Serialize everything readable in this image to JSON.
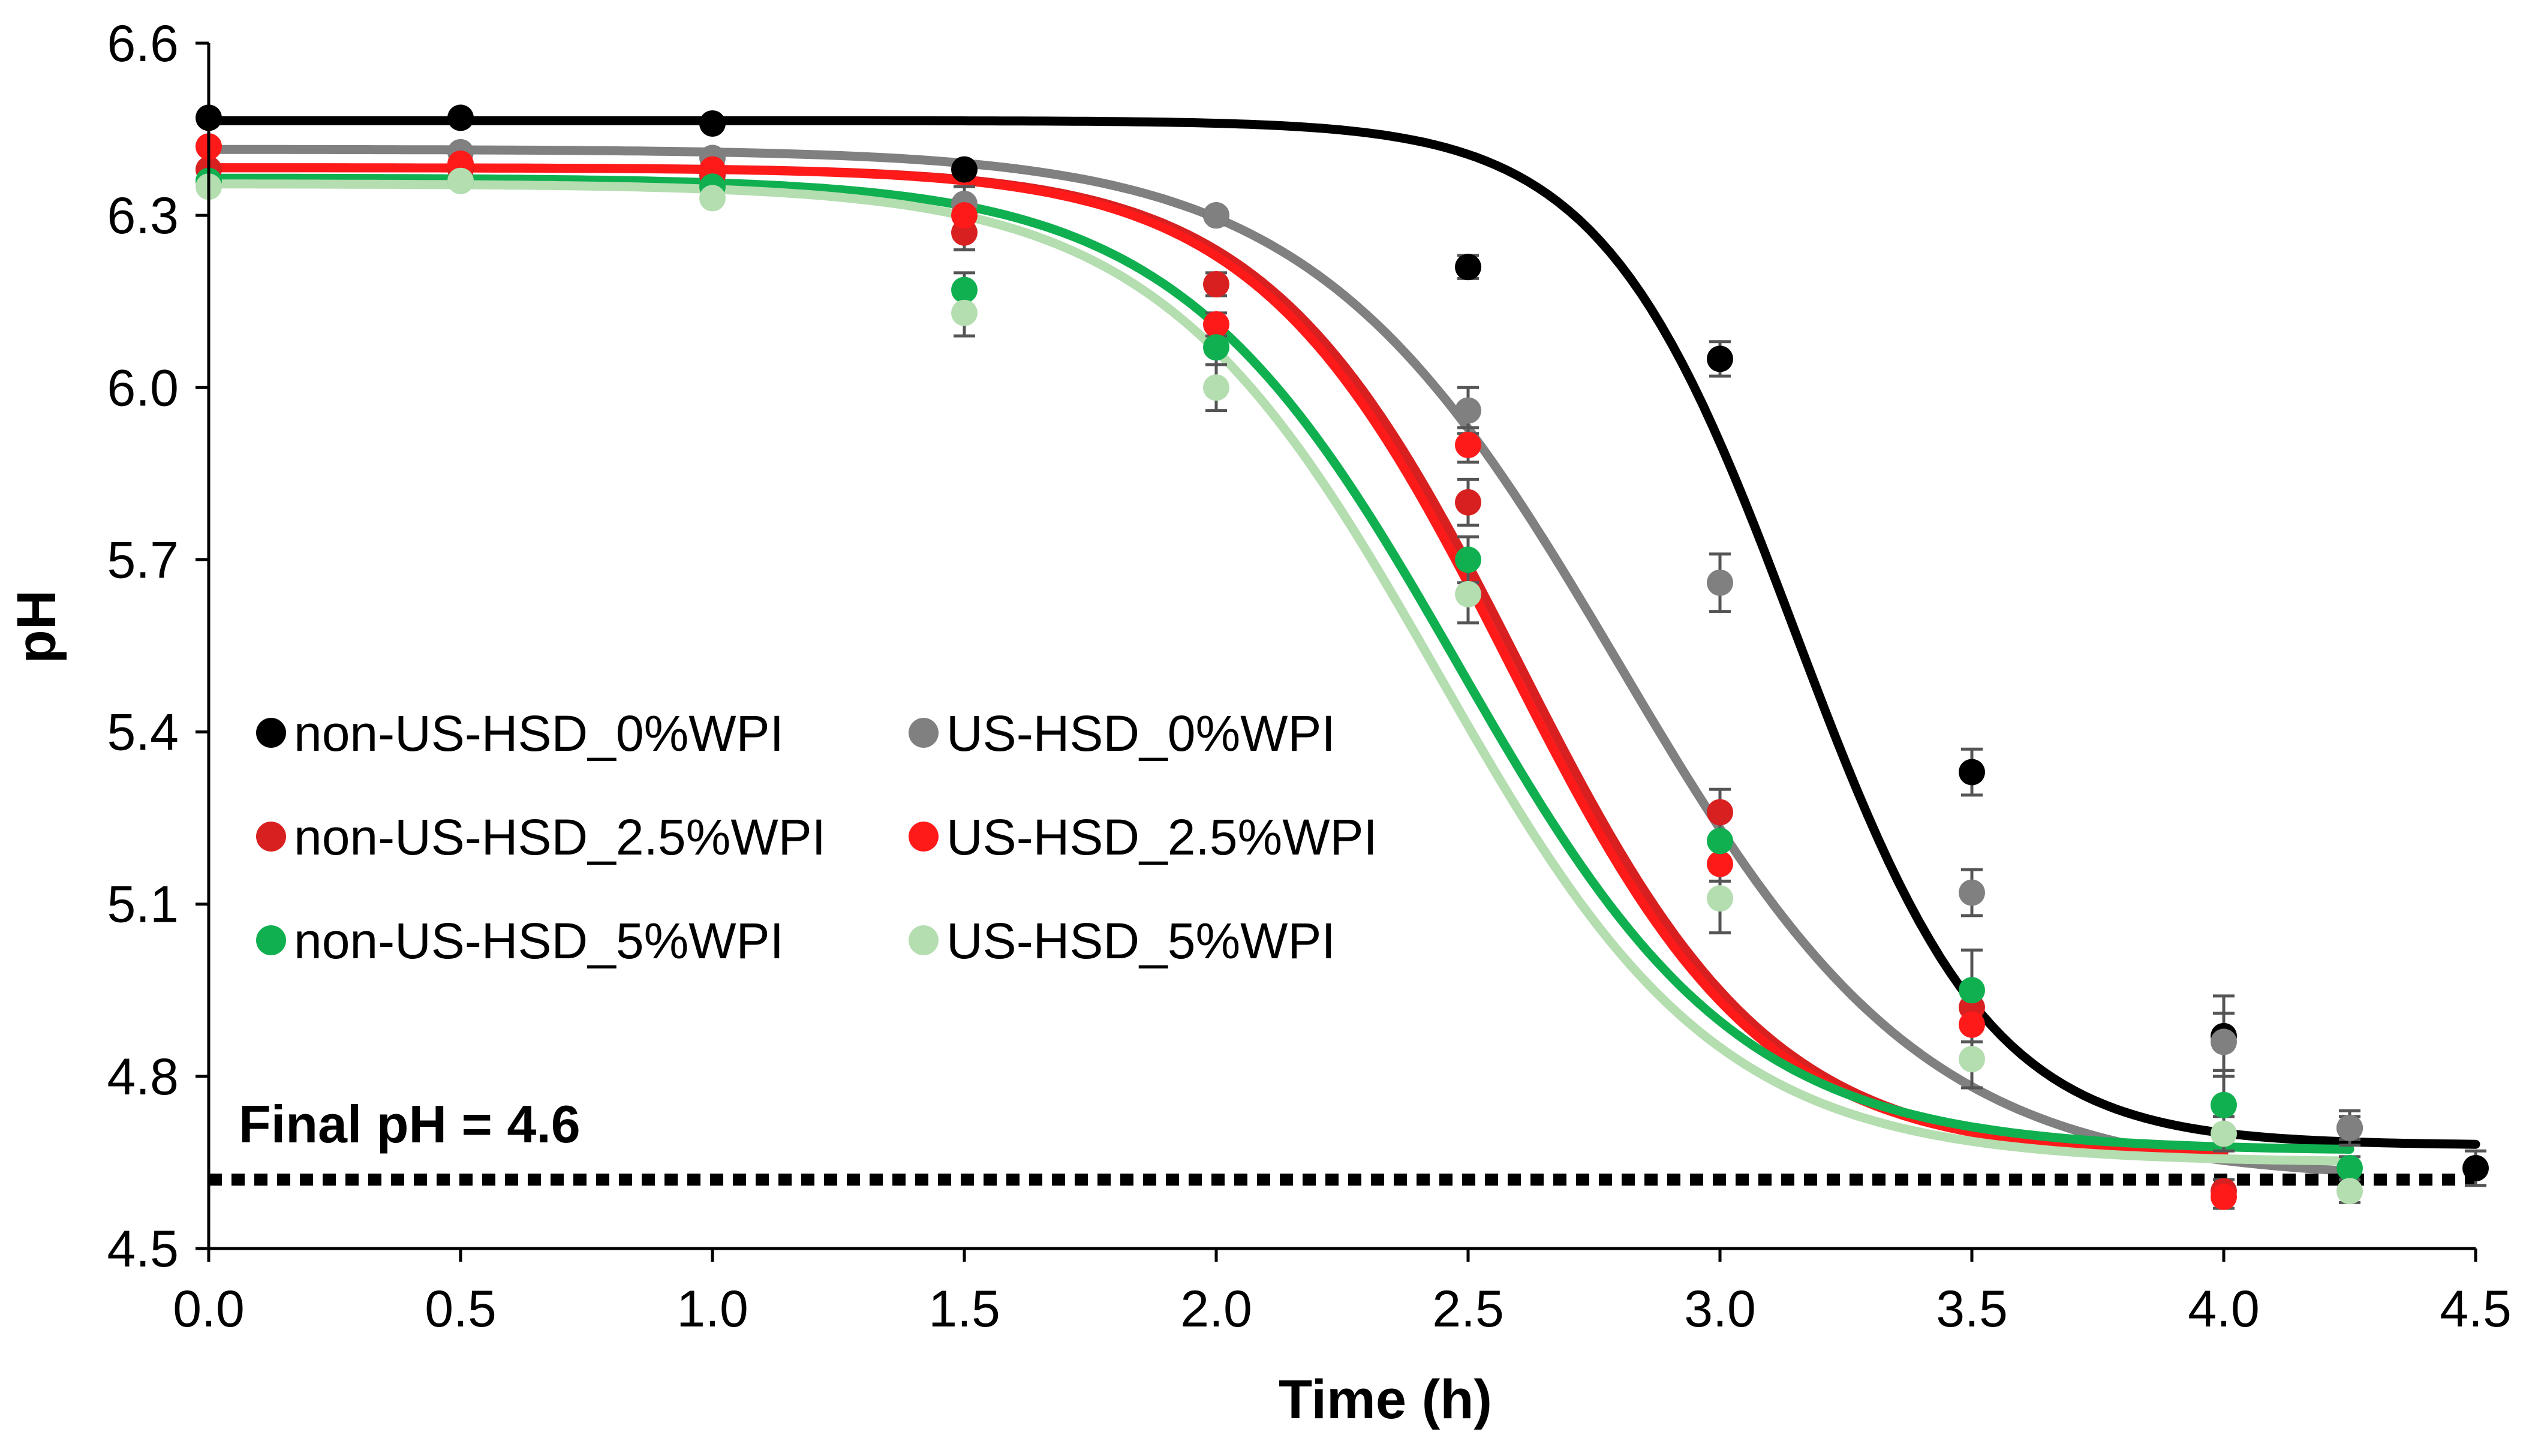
{
  "chart_data": {
    "type": "scatter",
    "xlabel": "Time (h)",
    "ylabel": "pH",
    "xlim": [
      0,
      4.5
    ],
    "ylim": [
      4.5,
      6.6
    ],
    "x_ticks": [
      "0.0",
      "0.5",
      "1.0",
      "1.5",
      "2.0",
      "2.5",
      "3.0",
      "3.5",
      "4.0",
      "4.5"
    ],
    "y_ticks": [
      "4.5",
      "4.8",
      "5.1",
      "5.4",
      "5.7",
      "6.0",
      "6.3",
      "6.6"
    ],
    "grid": false,
    "legend_position": "center-left",
    "annotation": {
      "text": "Final pH = 4.6",
      "y": 4.62
    },
    "series": [
      {
        "name": "non-US-HSD_0%WPI",
        "color": "#000000",
        "x": [
          0,
          0.5,
          1.0,
          1.5,
          2.0,
          2.5,
          3.0,
          3.5,
          4.0,
          4.25,
          4.5
        ],
        "y": [
          6.47,
          6.47,
          6.46,
          6.38,
          6.3,
          6.21,
          6.05,
          5.33,
          4.87,
          4.71,
          4.64
        ],
        "error": [
          0,
          0,
          0,
          0,
          0,
          0.02,
          0.03,
          0.04,
          0.07,
          0.02,
          0.03
        ],
        "fit": {
          "top": 6.465,
          "bottom": 4.68,
          "mid": 3.15,
          "slope": 5.2,
          "x_start": 0,
          "x_end": 4.5
        }
      },
      {
        "name": "US-HSD_0%WPI",
        "color": "#808080",
        "x": [
          0,
          0.5,
          1.0,
          1.5,
          2.0,
          2.5,
          3.0,
          3.5,
          4.0,
          4.25
        ],
        "y": [
          6.42,
          6.41,
          6.4,
          6.32,
          6.3,
          5.96,
          5.66,
          5.12,
          4.86,
          4.71
        ],
        "error": [
          0,
          0,
          0,
          0.03,
          0,
          0.04,
          0.05,
          0.04,
          0.05,
          0.03
        ],
        "fit": {
          "top": 6.415,
          "bottom": 4.62,
          "mid": 2.8,
          "slope": 3.3,
          "x_start": 0,
          "x_end": 4.25
        }
      },
      {
        "name": "non-US-HSD_2.5%WPI",
        "color": "#D92020",
        "x": [
          0,
          0.5,
          1.0,
          1.5,
          2.0,
          2.5,
          3.0,
          3.5,
          4.0
        ],
        "y": [
          6.38,
          6.38,
          6.37,
          6.27,
          6.18,
          5.8,
          5.26,
          4.92,
          4.6
        ],
        "error": [
          0,
          0,
          0,
          0.03,
          0.02,
          0.04,
          0.04,
          0.03,
          0.02
        ],
        "fit": {
          "top": 6.383,
          "bottom": 4.66,
          "mid": 2.6,
          "slope": 4.0,
          "x_start": 0,
          "x_end": 4.0
        }
      },
      {
        "name": "US-HSD_2.5%WPI",
        "color": "#FF1A1A",
        "x": [
          0,
          0.5,
          1.0,
          1.5,
          2.0,
          2.5,
          3.0,
          3.5,
          4.0
        ],
        "y": [
          6.42,
          6.39,
          6.38,
          6.3,
          6.11,
          5.9,
          5.17,
          4.89,
          4.59
        ],
        "error": [
          0,
          0,
          0,
          0.02,
          0.02,
          0.03,
          0.03,
          0.03,
          0.02
        ],
        "fit": {
          "top": 6.383,
          "bottom": 4.66,
          "mid": 2.58,
          "slope": 4.0,
          "x_start": 0,
          "x_end": 4.0
        }
      },
      {
        "name": "non-US-HSD_5%WPI",
        "color": "#10B050",
        "x": [
          0,
          0.5,
          1.0,
          1.5,
          2.0,
          2.5,
          3.0,
          3.5,
          4.0,
          4.25
        ],
        "y": [
          6.36,
          6.36,
          6.35,
          6.17,
          6.07,
          5.7,
          5.21,
          4.95,
          4.75,
          4.64
        ],
        "error": [
          0,
          0,
          0,
          0.03,
          0.03,
          0.04,
          0.04,
          0.07,
          0.06,
          0.02
        ],
        "fit": {
          "top": 6.365,
          "bottom": 4.67,
          "mid": 2.48,
          "slope": 3.6,
          "x_start": 0,
          "x_end": 4.25
        }
      },
      {
        "name": "US-HSD_5%WPI",
        "color": "#B4DDB0",
        "x": [
          0,
          0.5,
          1.0,
          1.5,
          2.0,
          2.5,
          3.0,
          3.5,
          4.0,
          4.25
        ],
        "y": [
          6.35,
          6.36,
          6.33,
          6.13,
          6.0,
          5.64,
          5.11,
          4.83,
          4.7,
          4.6
        ],
        "error": [
          0,
          0,
          0,
          0.04,
          0.04,
          0.05,
          0.06,
          0.05,
          0.03,
          0.02
        ],
        "fit": {
          "top": 6.355,
          "bottom": 4.65,
          "mid": 2.44,
          "slope": 3.6,
          "x_start": 0,
          "x_end": 4.25
        }
      }
    ]
  }
}
